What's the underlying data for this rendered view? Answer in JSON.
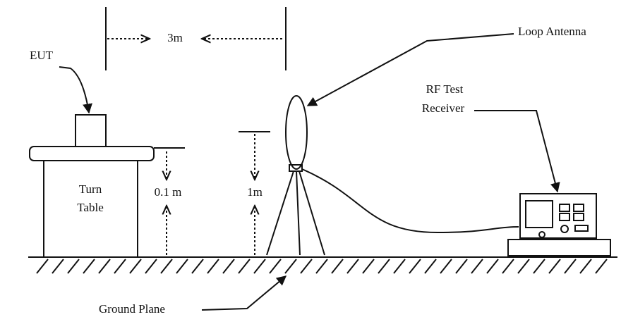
{
  "labels": {
    "distance": "3m",
    "loop_antenna": "Loop Antenna",
    "eut": "EUT",
    "receiver": [
      "RF Test",
      "Receiver"
    ],
    "turn_table": [
      "Turn",
      "Table"
    ],
    "table_height": "0.1 m",
    "antenna_height": "1m",
    "ground_plane": "Ground Plane"
  }
}
